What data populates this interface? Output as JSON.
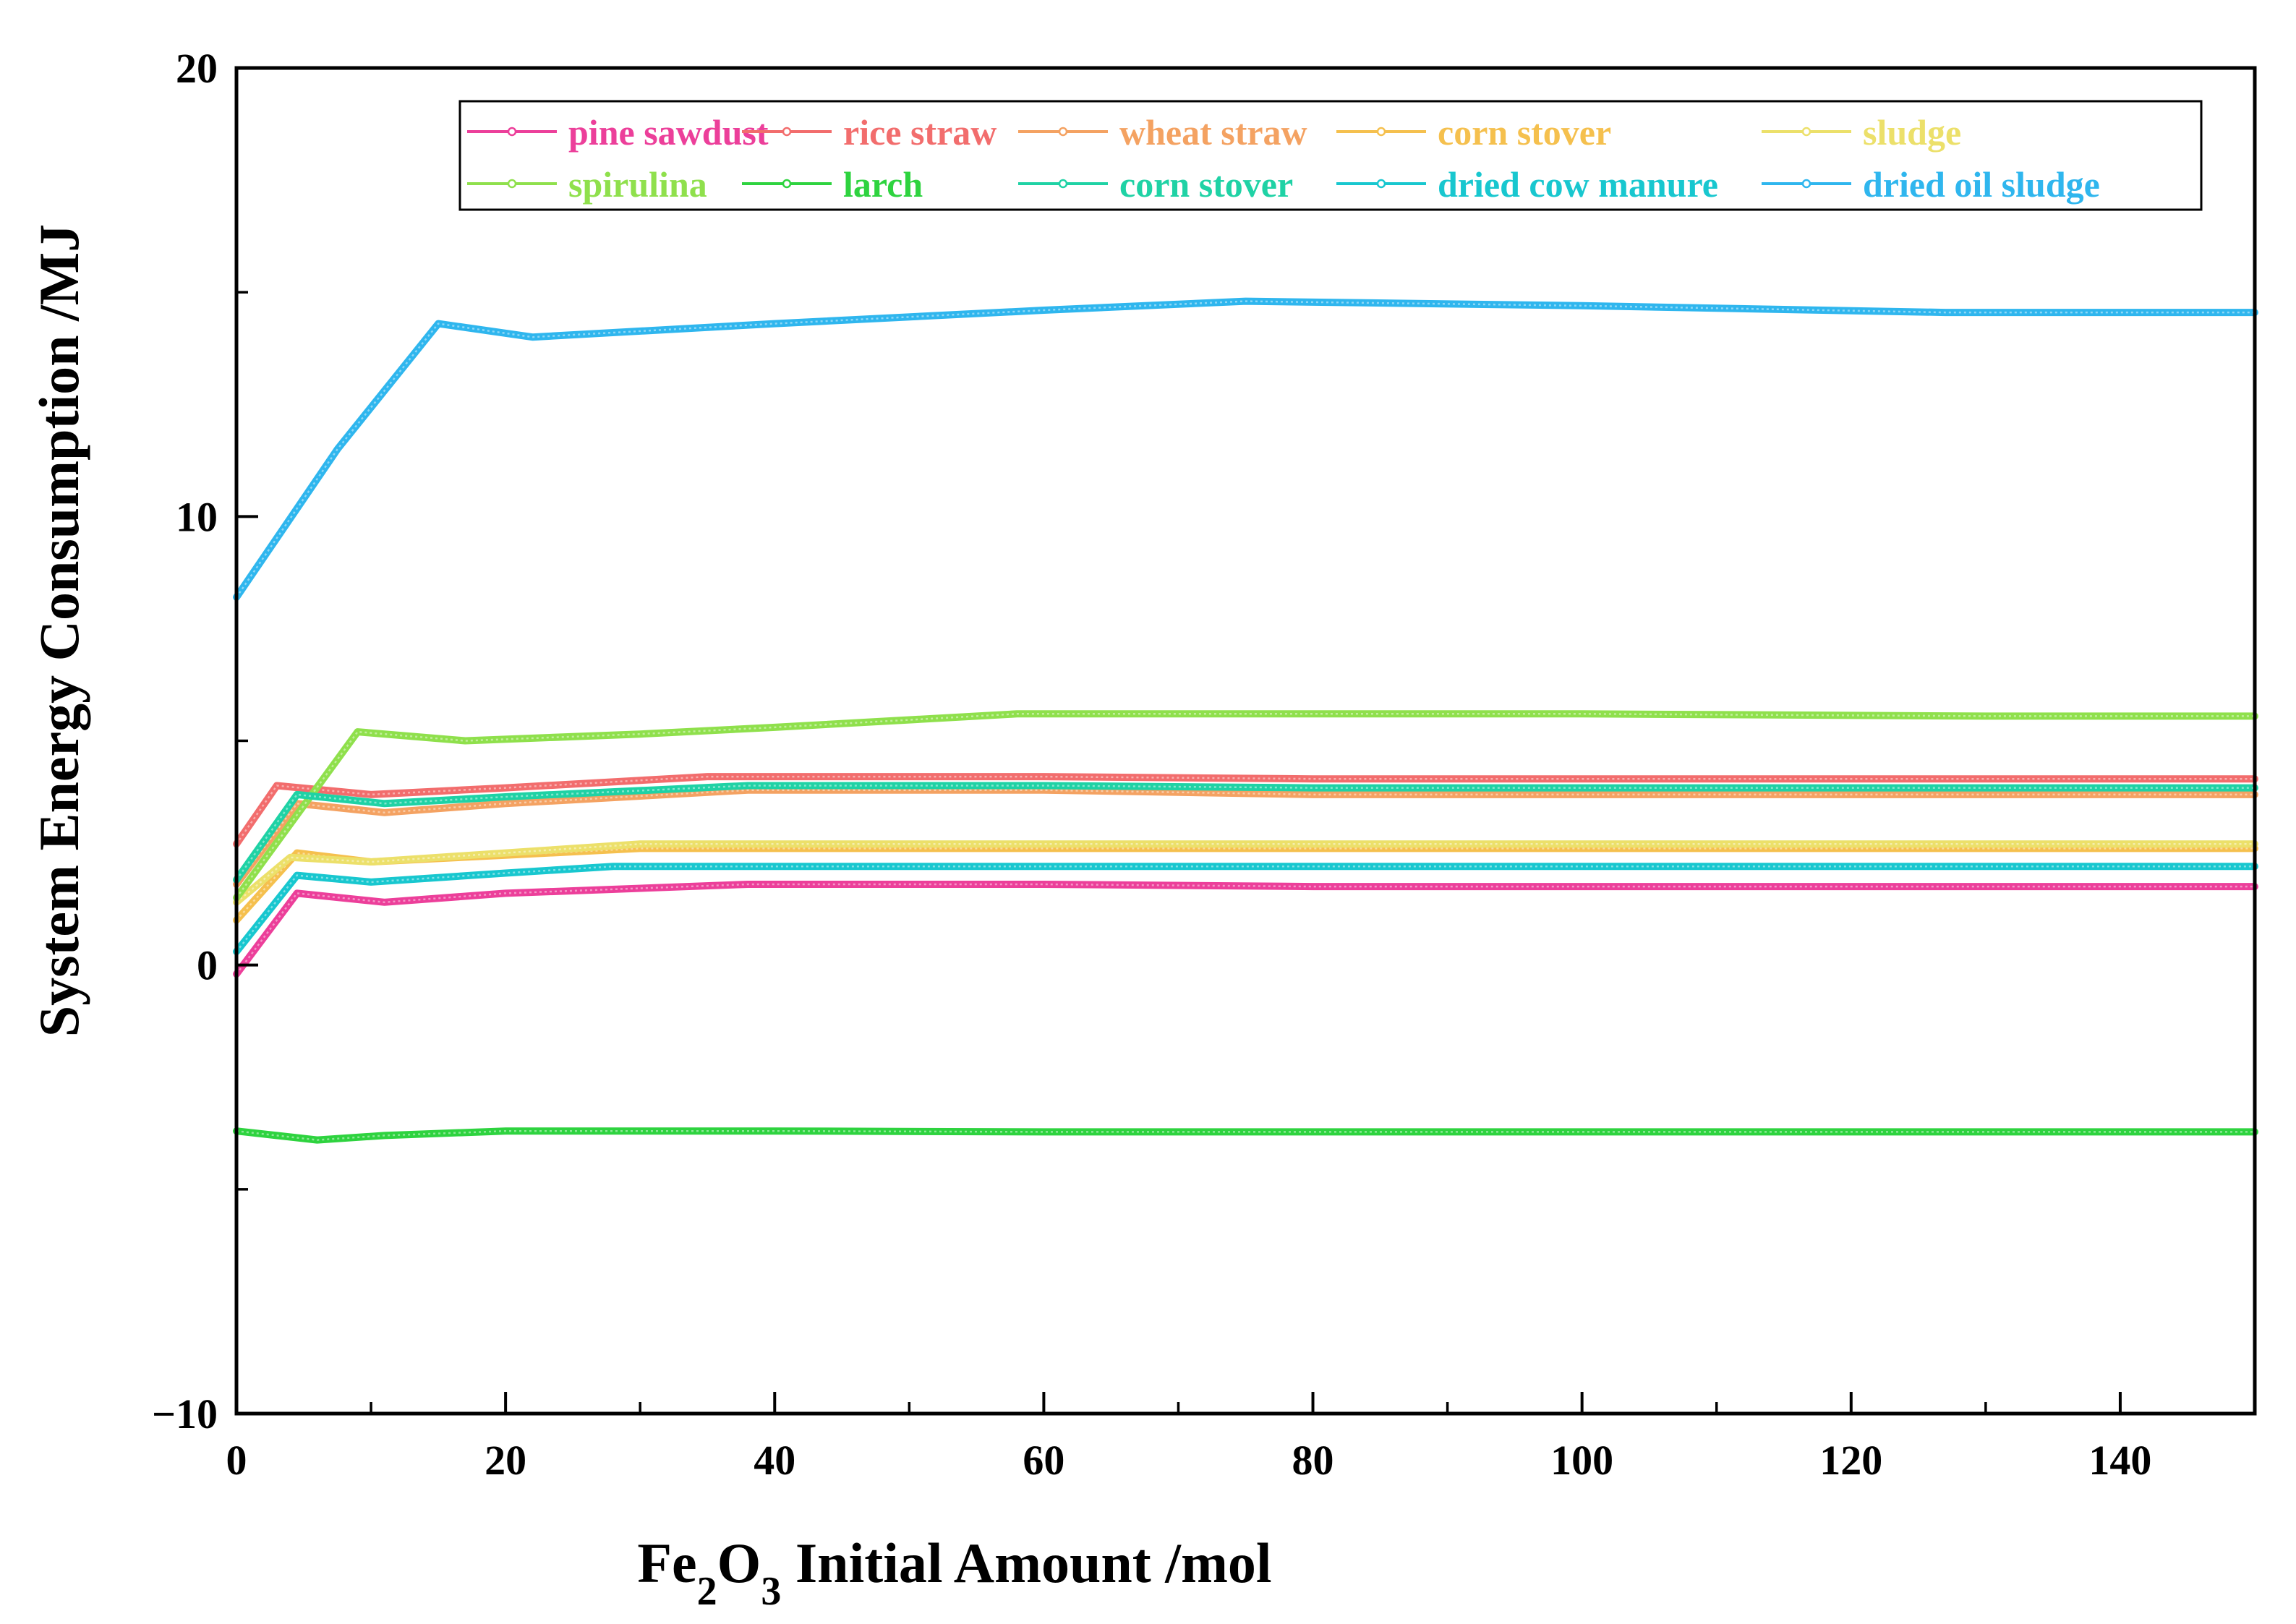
{
  "chart_data": {
    "type": "line",
    "title": "",
    "xlabel": {
      "prefix": "Fe",
      "sub1": "2",
      "mid": "O",
      "sub2": "3",
      "suffix": " Initial Amount /mol"
    },
    "ylabel": "System Energy Consumption /MJ",
    "xlim": [
      0,
      150
    ],
    "ylim": [
      -10,
      20
    ],
    "x_ticks": [
      0,
      20,
      40,
      60,
      80,
      100,
      120,
      140
    ],
    "x_minor_ticks": [
      10,
      30,
      50,
      70,
      90,
      110,
      130,
      150
    ],
    "y_ticks": [
      -10,
      0,
      10,
      20
    ],
    "y_tick_labels": [
      "−10",
      "0",
      "10",
      "20"
    ],
    "y_minor_ticks": [
      -5,
      5,
      15
    ],
    "grid": false,
    "legend_position": "top-right",
    "series": [
      {
        "name": "pine sawdust",
        "color": "#ec3f9a",
        "x": [
          0,
          4.5,
          11,
          20,
          38,
          60,
          80,
          100,
          130,
          150
        ],
        "values": [
          -0.2,
          1.6,
          1.4,
          1.6,
          1.8,
          1.8,
          1.75,
          1.75,
          1.75,
          1.75
        ]
      },
      {
        "name": "rice straw",
        "color": "#f26d6d",
        "x": [
          0,
          3,
          10,
          20,
          35,
          60,
          80,
          100,
          130,
          150
        ],
        "values": [
          2.7,
          4.0,
          3.8,
          3.95,
          4.2,
          4.2,
          4.15,
          4.15,
          4.15,
          4.15
        ]
      },
      {
        "name": "wheat straw",
        "color": "#f4a262",
        "x": [
          0,
          4.5,
          11,
          20,
          38,
          60,
          80,
          100,
          130,
          150
        ],
        "values": [
          1.8,
          3.6,
          3.4,
          3.6,
          3.9,
          3.9,
          3.8,
          3.8,
          3.8,
          3.8
        ]
      },
      {
        "name": "corn stover",
        "color": "#f5c04e",
        "x": [
          0,
          4.5,
          10,
          20,
          30,
          60,
          80,
          100,
          130,
          150
        ],
        "values": [
          1.0,
          2.5,
          2.3,
          2.45,
          2.6,
          2.6,
          2.6,
          2.6,
          2.6,
          2.6
        ]
      },
      {
        "name": "sludge",
        "color": "#ece06a",
        "x": [
          0,
          4,
          10,
          20,
          30,
          60,
          80,
          100,
          130,
          150
        ],
        "values": [
          1.4,
          2.4,
          2.3,
          2.5,
          2.7,
          2.7,
          2.7,
          2.7,
          2.7,
          2.7
        ]
      },
      {
        "name": "spirulina",
        "color": "#8fe04c",
        "x": [
          0,
          9,
          17,
          30,
          40,
          58,
          80,
          100,
          130,
          150
        ],
        "values": [
          1.5,
          5.2,
          5.0,
          5.15,
          5.3,
          5.6,
          5.6,
          5.6,
          5.55,
          5.55
        ]
      },
      {
        "name": "larch",
        "color": "#2ed33f",
        "x": [
          0,
          6,
          11,
          20,
          40,
          60,
          80,
          100,
          130,
          150
        ],
        "values": [
          -3.7,
          -3.9,
          -3.8,
          -3.7,
          -3.7,
          -3.72,
          -3.72,
          -3.72,
          -3.72,
          -3.72
        ]
      },
      {
        "name": "corn stover",
        "color": "#1fd2a5",
        "x": [
          0,
          4.5,
          11,
          20,
          38,
          60,
          80,
          100,
          130,
          150
        ],
        "values": [
          1.9,
          3.8,
          3.6,
          3.75,
          4.0,
          4.0,
          3.95,
          3.95,
          3.95,
          3.95
        ]
      },
      {
        "name": "dried cow manure",
        "color": "#18c7cf",
        "x": [
          0,
          4.5,
          10,
          20,
          28,
          60,
          80,
          100,
          130,
          150
        ],
        "values": [
          0.3,
          2.0,
          1.85,
          2.05,
          2.2,
          2.2,
          2.2,
          2.2,
          2.2,
          2.2
        ]
      },
      {
        "name": "dried oil sludge",
        "color": "#2fb6ee",
        "x": [
          0,
          7.5,
          15,
          22,
          40,
          60,
          75,
          100,
          127,
          150
        ],
        "values": [
          8.2,
          11.5,
          14.3,
          14.0,
          14.3,
          14.6,
          14.8,
          14.7,
          14.55,
          14.55
        ]
      }
    ]
  }
}
